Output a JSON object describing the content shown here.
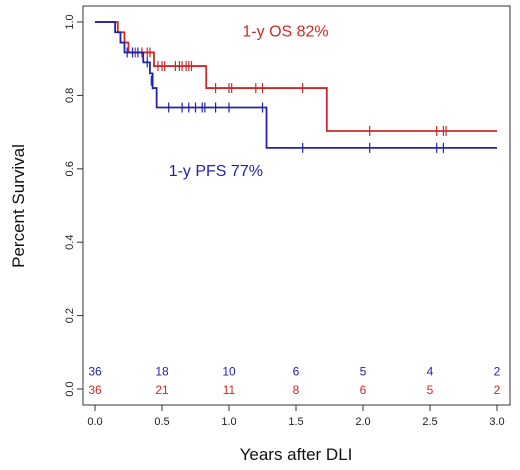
{
  "chart_data": {
    "type": "line",
    "title": "",
    "xlabel": "Years after DLI",
    "ylabel": "Percent Survival",
    "xlim": [
      0,
      3
    ],
    "ylim": [
      0,
      1
    ],
    "x_ticks": [
      0.0,
      0.5,
      1.0,
      1.5,
      2.0,
      2.5,
      3.0
    ],
    "x_tick_labels": [
      "0.0",
      "0.5",
      "1.0",
      "1.5",
      "2.0",
      "2.5",
      "3.0"
    ],
    "y_ticks": [
      0.0,
      0.2,
      0.4,
      0.6,
      0.8,
      1.0
    ],
    "y_tick_labels": [
      "0.0",
      "0.2",
      "0.4",
      "0.6",
      "0.8",
      "1.0"
    ],
    "grid": false,
    "series": [
      {
        "label": "1-y OS 82%",
        "color": "#cc2a2a",
        "steps": [
          [
            0,
            1.0
          ],
          [
            0.17,
            0.972
          ],
          [
            0.22,
            0.944
          ],
          [
            0.25,
            0.917
          ],
          [
            0.44,
            0.88
          ],
          [
            0.83,
            0.82
          ],
          [
            1.73,
            0.703
          ],
          [
            3.0,
            0.703
          ]
        ],
        "censored": [
          [
            0.3,
            0.917
          ],
          [
            0.35,
            0.917
          ],
          [
            0.39,
            0.917
          ],
          [
            0.41,
            0.917
          ],
          [
            0.47,
            0.88
          ],
          [
            0.5,
            0.88
          ],
          [
            0.52,
            0.88
          ],
          [
            0.6,
            0.88
          ],
          [
            0.63,
            0.88
          ],
          [
            0.65,
            0.88
          ],
          [
            0.68,
            0.88
          ],
          [
            0.7,
            0.88
          ],
          [
            0.72,
            0.88
          ],
          [
            0.9,
            0.82
          ],
          [
            1.0,
            0.82
          ],
          [
            1.02,
            0.82
          ],
          [
            1.2,
            0.82
          ],
          [
            1.25,
            0.82
          ],
          [
            1.55,
            0.82
          ],
          [
            2.05,
            0.703
          ],
          [
            2.55,
            0.703
          ],
          [
            2.6,
            0.703
          ],
          [
            2.62,
            0.703
          ]
        ]
      },
      {
        "label": "1-y PFS 77%",
        "color": "#2323a8",
        "steps": [
          [
            0,
            1.0
          ],
          [
            0.15,
            0.972
          ],
          [
            0.19,
            0.944
          ],
          [
            0.22,
            0.917
          ],
          [
            0.36,
            0.89
          ],
          [
            0.41,
            0.86
          ],
          [
            0.43,
            0.82
          ],
          [
            0.46,
            0.767
          ],
          [
            1.28,
            0.657
          ],
          [
            3.0,
            0.657
          ]
        ],
        "censored": [
          [
            0.24,
            0.917
          ],
          [
            0.28,
            0.917
          ],
          [
            0.32,
            0.917
          ],
          [
            0.39,
            0.89
          ],
          [
            0.42,
            0.84
          ],
          [
            0.43,
            0.83
          ],
          [
            0.55,
            0.767
          ],
          [
            0.65,
            0.767
          ],
          [
            0.7,
            0.767
          ],
          [
            0.75,
            0.767
          ],
          [
            0.8,
            0.767
          ],
          [
            0.82,
            0.767
          ],
          [
            0.9,
            0.767
          ],
          [
            1.0,
            0.767
          ],
          [
            1.25,
            0.767
          ],
          [
            1.55,
            0.657
          ],
          [
            2.05,
            0.657
          ],
          [
            2.55,
            0.657
          ],
          [
            2.6,
            0.657
          ]
        ]
      }
    ],
    "annotations": [
      {
        "text": "1-y OS 82%",
        "color": "#cc2a2a",
        "x": 1.1,
        "y": 0.96
      },
      {
        "text": "1-y PFS 77%",
        "color": "#2323a8",
        "x": 0.55,
        "y": 0.58
      }
    ],
    "at_risk": [
      {
        "series": "PFS",
        "color": "#2323a8",
        "y": 0.045,
        "x": [
          0,
          0.5,
          1.0,
          1.5,
          2.0,
          2.5,
          3.0
        ],
        "counts": [
          "36",
          "18",
          "10",
          "6",
          "5",
          "4",
          "2"
        ]
      },
      {
        "series": "OS",
        "color": "#cc2a2a",
        "y": -0.005,
        "x": [
          0,
          0.5,
          1.0,
          1.5,
          2.0,
          2.5,
          3.0
        ],
        "counts": [
          "36",
          "21",
          "11",
          "8",
          "6",
          "5",
          "2"
        ]
      }
    ]
  }
}
